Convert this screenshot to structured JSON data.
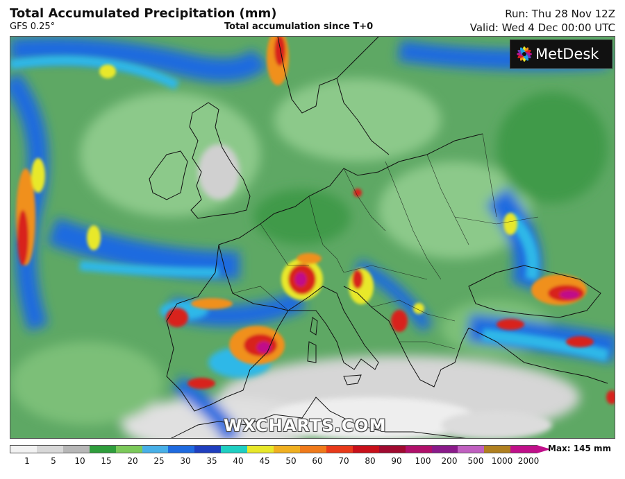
{
  "header": {
    "title": "Total Accumulated Precipitation (mm)",
    "model": "GFS 0.25°",
    "subtitle": "Total accumulation since T+0",
    "run": "Run: Thu 28 Nov 12Z",
    "valid": "Valid: Wed 4 Dec 00:00 UTC"
  },
  "branding": {
    "logo": "MetDesk",
    "watermark": "WXCHARTS.COM"
  },
  "legend": {
    "max_label": "Max: 145 mm",
    "ticks": [
      "1",
      "5",
      "10",
      "15",
      "20",
      "25",
      "30",
      "35",
      "40",
      "45",
      "50",
      "60",
      "70",
      "80",
      "90",
      "100",
      "200",
      "500",
      "1000",
      "2000"
    ],
    "colors": [
      "#f2f2f2",
      "#d8d8d8",
      "#b7b7b7",
      "#2f9e3c",
      "#7bc95a",
      "#48b0e8",
      "#1f6be0",
      "#1f3fbf",
      "#1fcfc2",
      "#e8e82a",
      "#f0b020",
      "#f07a1a",
      "#e83a1a",
      "#c8101a",
      "#a00a30",
      "#b0106a",
      "#8a1a8a",
      "#c060c0",
      "#b08020",
      "#c0108a"
    ]
  },
  "map_colors": {
    "land_green": "#5ea864",
    "light_green": "#8cc98a",
    "dark_green": "#2d8a3a",
    "gray": "#c8c8c8",
    "white": "#f4f4f4",
    "blue": "#1f6be0",
    "cyan": "#2fb8e8",
    "yellow": "#e8e82a",
    "orange": "#f0901a",
    "red": "#d8201a",
    "magenta": "#c0108a"
  }
}
